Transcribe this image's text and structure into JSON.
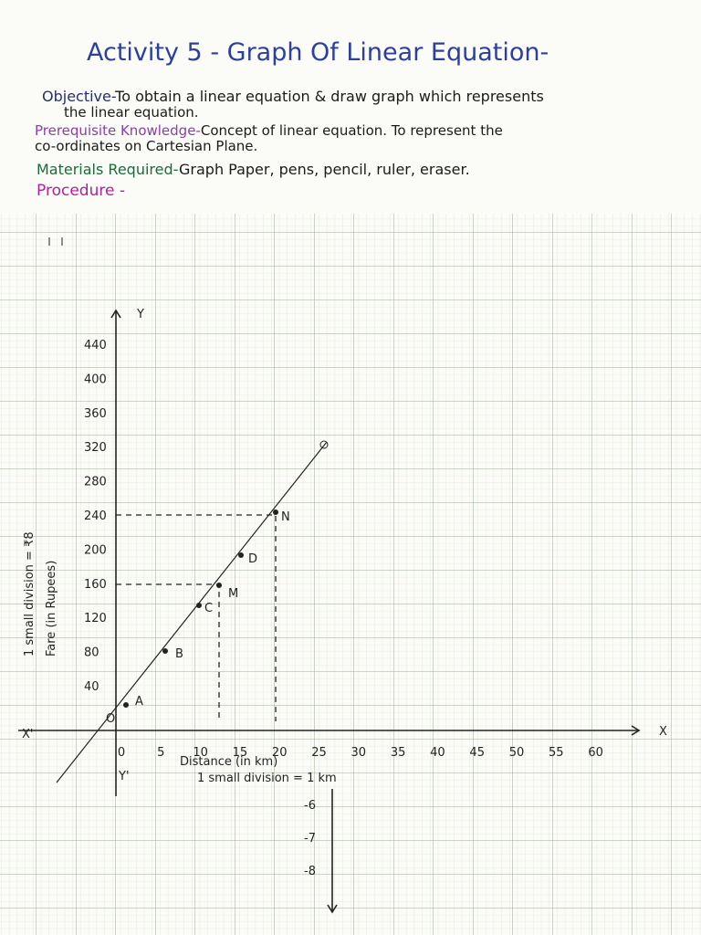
{
  "header": {
    "title": "Activity 5 - Graph Of Linear Equation-"
  },
  "sections": {
    "objective": {
      "label": "Objective-",
      "text": "To obtain a linear equation & draw graph which represents",
      "text_continued": "the linear equation."
    },
    "prerequisite": {
      "label": "Prerequisite Knowledge-",
      "text": "Concept of linear equation. To represent the",
      "text_continued": "co-ordinates on Cartesian Plane."
    },
    "materials": {
      "label": "Materials Required-",
      "text": "Graph Paper, pens, pencil, ruler, eraser."
    },
    "procedure": {
      "label": "Procedure -"
    }
  },
  "graph": {
    "x_tick_labels": [
      "0",
      "5",
      "10",
      "15",
      "20",
      "25",
      "30",
      "35",
      "40",
      "45",
      "50",
      "55",
      "60"
    ],
    "y_tick_labels": [
      "40",
      "80",
      "120",
      "160",
      "200",
      "240",
      "280",
      "320",
      "360",
      "400",
      "440"
    ],
    "negative_y_labels": [
      "-6",
      "-7",
      "-8"
    ],
    "point_labels": [
      "O",
      "A",
      "B",
      "C",
      "D",
      "M",
      "N"
    ],
    "x_axis_label": "Distance (in km)",
    "x_scale": "1 small division = 1 km",
    "y_axis_label": "Fare (in Rupees)",
    "y_scale": "1 small division = ₹8",
    "axis_names": [
      "X",
      "X'",
      "Y",
      "Y'"
    ]
  }
}
